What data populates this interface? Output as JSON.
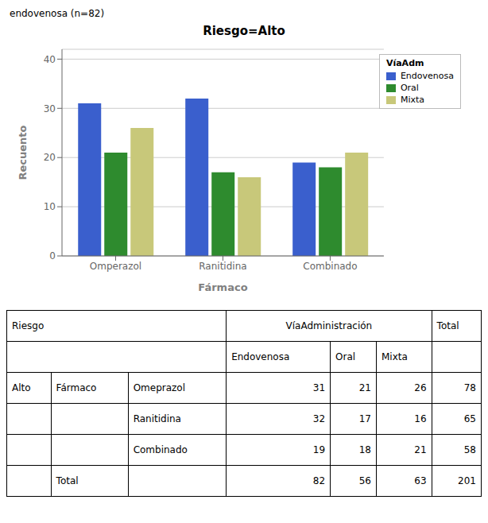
{
  "chart_data": [
    {
      "type": "bar",
      "subtitle": "endovenosa (n=82)",
      "title": "Riesgo=Alto",
      "x_label": "Fármaco",
      "y_label": "Recuento",
      "categories": [
        "Omperazol",
        "Ranitidina",
        "Combinado"
      ],
      "series": [
        {
          "name": "Endovenosa",
          "color": "#3a5fcd",
          "values": [
            31,
            32,
            19
          ]
        },
        {
          "name": "Oral",
          "color": "#2e8b2e",
          "values": [
            21,
            17,
            18
          ]
        },
        {
          "name": "Mixta",
          "color": "#c8c87a",
          "values": [
            26,
            16,
            21
          ]
        }
      ],
      "legend_title": "VíaAdm",
      "legend": "upper right",
      "ylim": [
        0,
        42
      ],
      "yticks": [
        0,
        10,
        20,
        30,
        40
      ],
      "grid": true
    },
    {
      "type": "table",
      "header": [
        "Riesgo",
        "VíaAdministración",
        "Total"
      ],
      "sub_headers": [
        "Endovenosa",
        "Oral",
        "Mixta"
      ],
      "row_labels": [
        [
          "Alto",
          "Fármaco",
          "Omeprazol"
        ],
        [
          null,
          null,
          "Ranitidina"
        ],
        [
          null,
          null,
          "Combinado"
        ],
        [
          null,
          "Total",
          null
        ]
      ],
      "values": [
        [
          31,
          21,
          26,
          78
        ],
        [
          32,
          17,
          16,
          65
        ],
        [
          19,
          18,
          21,
          58
        ],
        [
          82,
          56,
          63,
          201
        ]
      ]
    }
  ]
}
